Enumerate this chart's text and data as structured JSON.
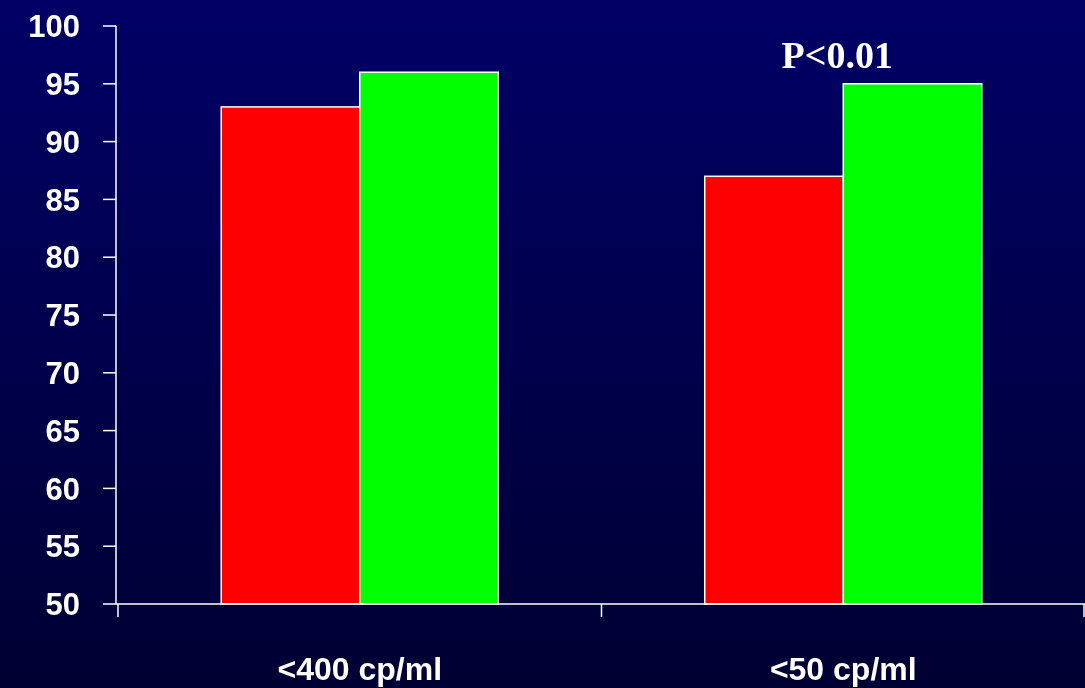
{
  "chart_data": {
    "type": "bar",
    "categories": [
      "<400 cp/ml",
      "<50 cp/ml"
    ],
    "series": [
      {
        "color": "#ff0000",
        "values": [
          93,
          87
        ]
      },
      {
        "color": "#00ff00",
        "values": [
          96,
          95
        ]
      }
    ],
    "ylim": [
      50,
      100
    ],
    "yticks": [
      50,
      55,
      60,
      65,
      70,
      75,
      80,
      85,
      90,
      95,
      100
    ],
    "grid": false,
    "annotations": [
      "P<0.01"
    ]
  }
}
